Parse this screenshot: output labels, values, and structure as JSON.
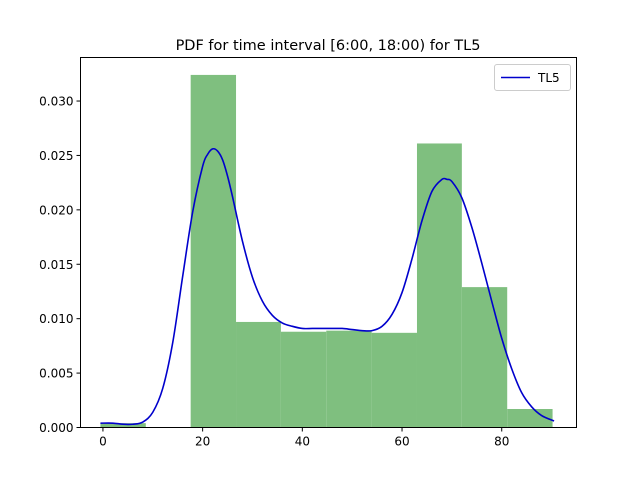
{
  "chart_data": {
    "type": "bar",
    "title": "PDF for time interval [6:00, 18:00) for TL5",
    "xlabel": "",
    "ylabel": "",
    "xlim": [
      -4.5,
      95
    ],
    "ylim": [
      0,
      0.034
    ],
    "xticks": [
      0,
      20,
      40,
      60,
      80
    ],
    "xtick_labels": [
      "0",
      "20",
      "40",
      "60",
      "80"
    ],
    "yticks": [
      0,
      0.005,
      0.01,
      0.015,
      0.02,
      0.025,
      0.03
    ],
    "ytick_labels": [
      "0.000",
      "0.005",
      "0.010",
      "0.015",
      "0.020",
      "0.025",
      "0.030"
    ],
    "grid": false,
    "legend_position": "top-right",
    "histogram": {
      "color": "#7fbf7f",
      "bins": [
        {
          "x0": -0.5,
          "x1": 8.6,
          "density": 0.0004
        },
        {
          "x0": 8.6,
          "x1": 17.6,
          "density": 0.0
        },
        {
          "x0": 17.6,
          "x1": 26.7,
          "density": 0.0324
        },
        {
          "x0": 26.7,
          "x1": 35.7,
          "density": 0.0097
        },
        {
          "x0": 35.7,
          "x1": 44.8,
          "density": 0.0088
        },
        {
          "x0": 44.8,
          "x1": 53.9,
          "density": 0.0089
        },
        {
          "x0": 53.9,
          "x1": 63.0,
          "density": 0.0087
        },
        {
          "x0": 63.0,
          "x1": 72.0,
          "density": 0.0261
        },
        {
          "x0": 72.0,
          "x1": 81.1,
          "density": 0.0129
        },
        {
          "x0": 81.1,
          "x1": 90.2,
          "density": 0.0017
        }
      ]
    },
    "series": [
      {
        "name": "TL5",
        "color": "#0000cc",
        "x": [
          -0.5,
          2,
          4,
          6,
          8,
          10,
          12,
          14,
          16,
          18,
          20,
          21,
          22,
          23,
          24,
          25,
          26,
          28,
          30,
          32,
          34,
          36,
          38,
          40,
          42,
          44,
          46,
          48,
          50,
          52,
          54,
          56,
          58,
          60,
          62,
          64,
          66,
          68,
          69,
          70,
          72,
          74,
          76,
          78,
          80,
          82,
          84,
          86,
          88,
          90.5
        ],
        "y": [
          0.0004,
          0.0004,
          0.0003,
          0.0003,
          0.0005,
          0.0014,
          0.0036,
          0.0078,
          0.0139,
          0.0198,
          0.024,
          0.0251,
          0.0256,
          0.0254,
          0.0246,
          0.0231,
          0.0212,
          0.0171,
          0.0138,
          0.0116,
          0.0103,
          0.0096,
          0.0093,
          0.0091,
          0.0091,
          0.0091,
          0.0091,
          0.0091,
          0.009,
          0.0089,
          0.0089,
          0.0093,
          0.0104,
          0.0124,
          0.0155,
          0.019,
          0.0217,
          0.0228,
          0.0228,
          0.0226,
          0.0211,
          0.0184,
          0.0151,
          0.0116,
          0.0082,
          0.0054,
          0.0032,
          0.0019,
          0.0011,
          0.0006
        ]
      }
    ]
  }
}
